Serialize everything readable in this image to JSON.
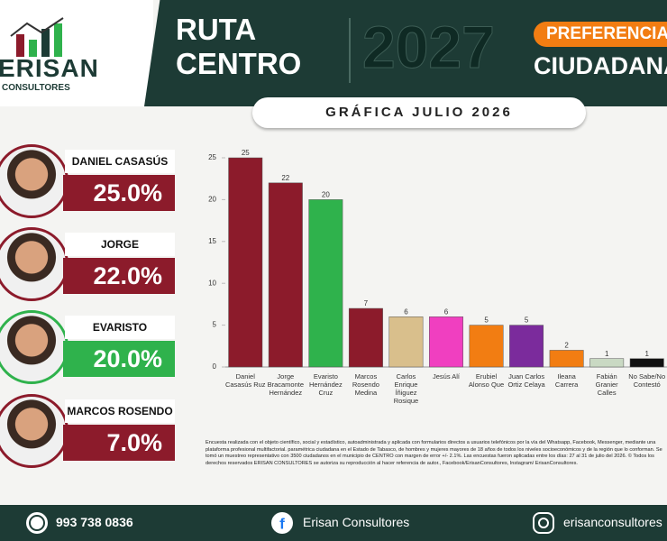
{
  "logo": {
    "name": "ERISAN",
    "sub": "CONSULTORES"
  },
  "header": {
    "line1": "RUTA",
    "line2": "CENTRO",
    "year": "2027",
    "badge": "PREFERENCIA",
    "subtitle": "CIUDADANA"
  },
  "candidates": [
    {
      "name": "DANIEL CASASÚS",
      "pct": "25.0%"
    },
    {
      "name": "JORGE BRACAMONTE",
      "pct": "22.0%"
    },
    {
      "name": "EVARISTO HERNÁNDEZ",
      "pct": "20.0%"
    },
    {
      "name": "MARCOS ROSENDO",
      "pct": "7.0%"
    }
  ],
  "chart_data": {
    "type": "bar",
    "title": "GRÁFICA JULIO 2026",
    "categories": [
      "Daniel Casasús Ruz",
      "Jorge Bracamonte Hernández",
      "Evaristo Hernández Cruz",
      "Marcos Rosendo Medina",
      "Carlos Enrique Íñiguez Rosique",
      "Jesús Alí",
      "Erubiel Alonso Que",
      "Juan Carlos Ortiz Celaya",
      "Ileana Carrera",
      "Fabián Granier Calles",
      "No Sabe/No Contestó"
    ],
    "values": [
      25,
      22,
      20,
      7,
      6,
      6,
      5,
      5,
      2,
      1,
      1
    ],
    "colors": [
      "#8c1b2b",
      "#8c1b2b",
      "#2fb24c",
      "#8c1b2b",
      "#d9bf8c",
      "#f03fc0",
      "#f27d12",
      "#7b2b9c",
      "#f27d12",
      "#c9d9c3",
      "#111111"
    ],
    "ylim": [
      0,
      25
    ],
    "yticks": [
      0,
      5,
      10,
      15,
      20,
      25
    ],
    "grid": false
  },
  "note": "Encuesta realizada con el objeto científico, social y estadístico, autoadministrada y aplicada con formularios directos a usuarios telefónicos por la vía del Whatsapp, Facebook, Messenger, mediante una plataforma profesional multifactorial. paramétrica ciudadana en el Estado de Tabasco, de hombres y mujeres mayores de 18 años de todos los niveles socioeconómicos y de la región que lo conforman. Se tomó un muestreo representativo con 3500 ciudadanos en el municipio de CENTRO con margen de error +/- 2.1%. Las encuestas fueron aplicadas entre los días: 27 al 31 de julio del 2026. © Todos los derechos reservados ERISAN CONSULTORES se autoriza su reproducción al hacer referencia de autor., Facebook/ErisanConsultores, Instagram/ ErisanConsultores.",
  "footer": {
    "phone": "993 738 0836",
    "facebook": "Erisan Consultores",
    "instagram": "erisanconsultores"
  }
}
